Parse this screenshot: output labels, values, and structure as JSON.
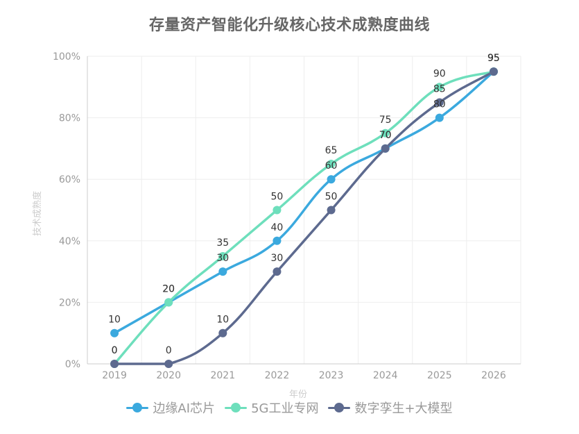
{
  "title": "存量资产智能化升级核心技术成熟度曲线",
  "y_axis": {
    "name": "技术成熟度",
    "ticks": [
      "0%",
      "20%",
      "40%",
      "60%",
      "80%",
      "100%"
    ]
  },
  "x_axis": {
    "name": "年份",
    "ticks": [
      "2019",
      "2020",
      "2021",
      "2022",
      "2023",
      "2024",
      "2025",
      "2026"
    ]
  },
  "legend": [
    {
      "label": "边缘AI芯片",
      "color": "#3BA9DE"
    },
    {
      "label": "5G工业专网",
      "color": "#6EDFBC"
    },
    {
      "label": "数字孪生+大模型",
      "color": "#5D6A8F"
    }
  ],
  "chart_data": {
    "type": "line",
    "title": "存量资产智能化升级核心技术成熟度曲线",
    "xlabel": "年份",
    "ylabel": "技术成熟度",
    "categories": [
      "2019",
      "2020",
      "2021",
      "2022",
      "2023",
      "2024",
      "2025",
      "2026"
    ],
    "ylim": [
      0,
      100
    ],
    "y_unit": "%",
    "grid": true,
    "smooth": true,
    "legend_position": "bottom",
    "series": [
      {
        "name": "边缘AI芯片",
        "color": "#3BA9DE",
        "values": [
          10,
          20,
          30,
          40,
          60,
          70,
          80,
          95
        ]
      },
      {
        "name": "5G工业专网",
        "color": "#6EDFBC",
        "values": [
          0,
          20,
          35,
          50,
          65,
          75,
          90,
          95
        ]
      },
      {
        "name": "数字孪生+大模型",
        "color": "#5D6A8F",
        "values": [
          0,
          0,
          10,
          30,
          50,
          70,
          85,
          95
        ]
      }
    ]
  }
}
